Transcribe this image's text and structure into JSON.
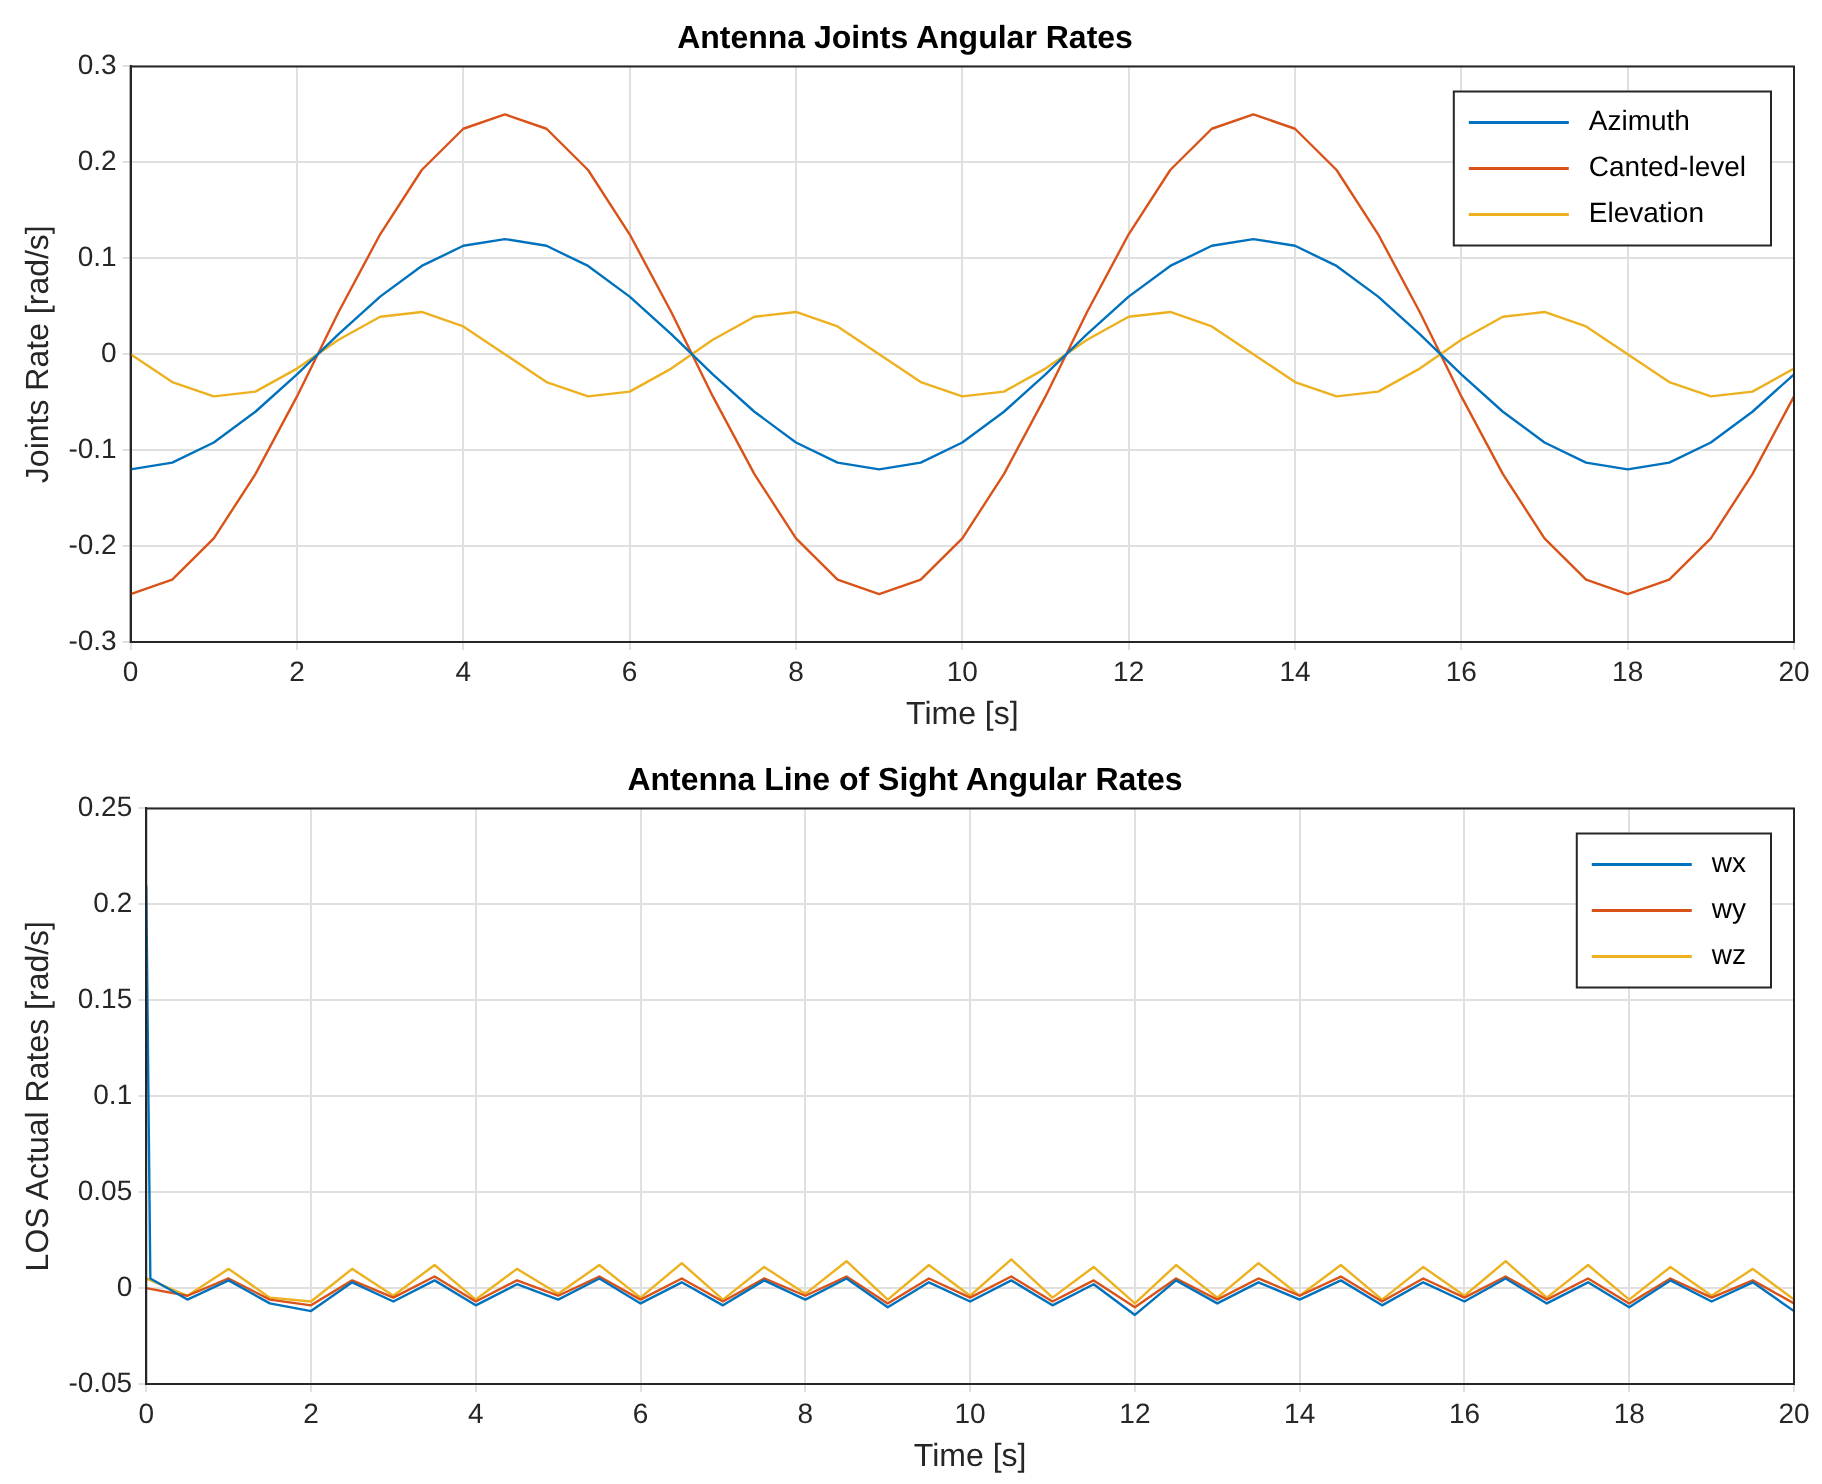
{
  "chart_data": [
    {
      "type": "line",
      "title": "Antenna Joints Angular Rates",
      "xlabel": "Time [s]",
      "ylabel": "Joints Rate [rad/s]",
      "x": [
        0,
        0.5,
        1,
        1.5,
        2,
        2.5,
        3,
        3.5,
        4,
        4.5,
        5,
        5.5,
        6,
        6.5,
        7,
        7.5,
        8,
        8.5,
        9,
        9.5,
        10,
        10.5,
        11,
        11.5,
        12,
        12.5,
        13,
        13.5,
        14,
        14.5,
        15,
        15.5,
        16,
        16.5,
        17,
        17.5,
        18,
        18.5,
        19,
        19.5,
        20
      ],
      "series": [
        {
          "name": "Azimuth",
          "color": "#0072bd",
          "values": [
            -0.12,
            -0.113,
            -0.092,
            -0.06,
            -0.021,
            0.021,
            0.06,
            0.092,
            0.113,
            0.12,
            0.113,
            0.092,
            0.06,
            0.021,
            -0.021,
            -0.06,
            -0.092,
            -0.113,
            -0.12,
            -0.113,
            -0.092,
            -0.06,
            -0.021,
            0.021,
            0.06,
            0.092,
            0.113,
            0.12,
            0.113,
            0.092,
            0.06,
            0.021,
            -0.021,
            -0.06,
            -0.092,
            -0.113,
            -0.12,
            -0.113,
            -0.092,
            -0.06,
            -0.021
          ]
        },
        {
          "name": "Canted-level",
          "color": "#d95319",
          "values": [
            -0.25,
            -0.235,
            -0.192,
            -0.125,
            -0.044,
            0.044,
            0.125,
            0.192,
            0.235,
            0.25,
            0.235,
            0.192,
            0.125,
            0.044,
            -0.044,
            -0.125,
            -0.192,
            -0.235,
            -0.25,
            -0.235,
            -0.192,
            -0.125,
            -0.044,
            0.044,
            0.125,
            0.192,
            0.235,
            0.25,
            0.235,
            0.192,
            0.125,
            0.044,
            -0.044,
            -0.125,
            -0.192,
            -0.235,
            -0.25,
            -0.235,
            -0.192,
            -0.125,
            -0.044
          ]
        },
        {
          "name": "Elevation",
          "color": "#edb120",
          "values": [
            0,
            -0.029,
            -0.044,
            -0.039,
            -0.015,
            0.015,
            0.039,
            0.044,
            0.029,
            0,
            -0.029,
            -0.044,
            -0.039,
            -0.015,
            0.015,
            0.039,
            0.044,
            0.029,
            0,
            -0.029,
            -0.044,
            -0.039,
            -0.015,
            0.015,
            0.039,
            0.044,
            0.029,
            0,
            -0.029,
            -0.044,
            -0.039,
            -0.015,
            0.015,
            0.039,
            0.044,
            0.029,
            0,
            -0.029,
            -0.044,
            -0.039,
            -0.015
          ]
        }
      ],
      "xlim": [
        0,
        20
      ],
      "xticks": [
        0,
        2,
        4,
        6,
        8,
        10,
        12,
        14,
        16,
        18,
        20
      ],
      "ylim": [
        -0.3,
        0.3
      ],
      "yticks": [
        -0.3,
        -0.2,
        -0.1,
        0,
        0.1,
        0.2,
        0.3
      ],
      "grid": true,
      "legend": "top right"
    },
    {
      "type": "line",
      "title": "Antenna Line of Sight Angular Rates",
      "xlabel": "Time [s]",
      "ylabel": "LOS Actual Rates [rad/s]",
      "x": [
        0,
        0.5,
        1,
        1.5,
        2,
        2.5,
        3,
        3.5,
        4,
        4.5,
        5,
        5.5,
        6,
        6.5,
        7,
        7.5,
        8,
        8.5,
        9,
        9.5,
        10,
        10.5,
        11,
        11.5,
        12,
        12.5,
        13,
        13.5,
        14,
        14.5,
        15,
        15.5,
        16,
        16.5,
        17,
        17.5,
        18,
        18.5,
        19,
        19.5,
        20
      ],
      "series": [
        {
          "name": "wx",
          "color": "#0072bd",
          "x": [
            0,
            0.05,
            0.5,
            1,
            1.5,
            2,
            2.5,
            3,
            3.5,
            4,
            4.5,
            5,
            5.5,
            6,
            6.5,
            7,
            7.5,
            8,
            8.5,
            9,
            9.5,
            10,
            10.5,
            11,
            11.5,
            12,
            12.5,
            13,
            13.5,
            14,
            14.5,
            15,
            15.5,
            16,
            16.5,
            17,
            17.5,
            18,
            18.5,
            19,
            19.5,
            20
          ],
          "values": [
            0.21,
            0.005,
            -0.006,
            0.004,
            -0.008,
            -0.012,
            0.003,
            -0.007,
            0.004,
            -0.009,
            0.002,
            -0.006,
            0.005,
            -0.008,
            0.003,
            -0.009,
            0.004,
            -0.006,
            0.005,
            -0.01,
            0.003,
            -0.007,
            0.004,
            -0.009,
            0.002,
            -0.014,
            0.004,
            -0.008,
            0.003,
            -0.006,
            0.004,
            -0.009,
            0.003,
            -0.007,
            0.005,
            -0.008,
            0.003,
            -0.01,
            0.004,
            -0.007,
            0.003,
            -0.012
          ]
        },
        {
          "name": "wy",
          "color": "#d95319",
          "values": [
            0,
            -0.004,
            0.005,
            -0.006,
            -0.009,
            0.004,
            -0.005,
            0.006,
            -0.007,
            0.004,
            -0.004,
            0.006,
            -0.006,
            0.005,
            -0.007,
            0.005,
            -0.004,
            0.006,
            -0.008,
            0.005,
            -0.005,
            0.006,
            -0.007,
            0.004,
            -0.01,
            0.005,
            -0.006,
            0.005,
            -0.004,
            0.006,
            -0.007,
            0.005,
            -0.005,
            0.006,
            -0.006,
            0.005,
            -0.008,
            0.005,
            -0.005,
            0.004,
            -0.008
          ]
        },
        {
          "name": "wz",
          "color": "#edb120",
          "values": [
            0.005,
            -0.004,
            0.01,
            -0.005,
            -0.007,
            0.01,
            -0.004,
            0.012,
            -0.006,
            0.01,
            -0.003,
            0.012,
            -0.005,
            0.013,
            -0.006,
            0.011,
            -0.003,
            0.014,
            -0.006,
            0.012,
            -0.004,
            0.015,
            -0.005,
            0.011,
            -0.008,
            0.012,
            -0.005,
            0.013,
            -0.004,
            0.012,
            -0.006,
            0.011,
            -0.004,
            0.014,
            -0.005,
            0.012,
            -0.006,
            0.011,
            -0.004,
            0.01,
            -0.006
          ]
        }
      ],
      "xlim": [
        0,
        20
      ],
      "xticks": [
        0,
        2,
        4,
        6,
        8,
        10,
        12,
        14,
        16,
        18,
        20
      ],
      "ylim": [
        -0.05,
        0.25
      ],
      "yticks": [
        -0.05,
        0,
        0.05,
        0.1,
        0.15,
        0.2,
        0.25
      ],
      "grid": true,
      "legend": "top right"
    }
  ]
}
